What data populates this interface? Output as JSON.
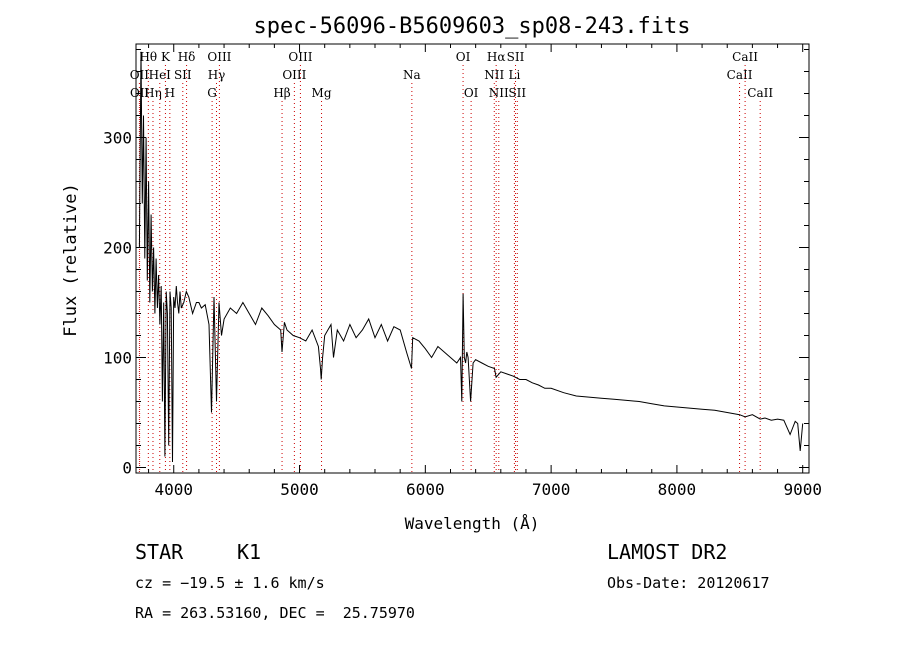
{
  "chart_data": {
    "type": "line",
    "title": "spec-56096-B5609603_sp08-243.fits",
    "xlabel": "Wavelength (Å)",
    "ylabel": "Flux (relative)",
    "xlim": [
      3700,
      9050
    ],
    "ylim": [
      -5,
      385
    ],
    "xticks": [
      4000,
      5000,
      6000,
      7000,
      8000,
      9000
    ],
    "yticks": [
      0,
      100,
      200,
      300
    ],
    "grid": false,
    "line_color": "#000000",
    "marker_line_color": "#cc0000",
    "series": [
      {
        "x": [
          3727,
          3740,
          3750,
          3760,
          3770,
          3780,
          3790,
          3800,
          3810,
          3820,
          3830,
          3840,
          3850,
          3860,
          3870,
          3880,
          3890,
          3900,
          3910,
          3920,
          3930,
          3940,
          3950,
          3960,
          3970,
          3980,
          3990,
          4000,
          4010,
          4020,
          4030,
          4040,
          4050,
          4060,
          4080,
          4100,
          4120,
          4150,
          4180,
          4200,
          4220,
          4250,
          4280,
          4300,
          4320,
          4340,
          4360,
          4380,
          4400,
          4450,
          4500,
          4550,
          4600,
          4650,
          4700,
          4750,
          4800,
          4850,
          4861,
          4880,
          4900,
          4950,
          5000,
          5050,
          5100,
          5150,
          5167,
          5172,
          5183,
          5200,
          5250,
          5270,
          5300,
          5350,
          5400,
          5450,
          5500,
          5550,
          5600,
          5650,
          5700,
          5750,
          5800,
          5850,
          5890,
          5900,
          5950,
          6000,
          6050,
          6100,
          6150,
          6200,
          6250,
          6280,
          6290,
          6300,
          6310,
          6320,
          6330,
          6340,
          6360,
          6380,
          6400,
          6450,
          6500,
          6550,
          6563,
          6600,
          6650,
          6700,
          6750,
          6800,
          6850,
          6900,
          6950,
          7000,
          7100,
          7200,
          7300,
          7400,
          7500,
          7600,
          7700,
          7800,
          7900,
          8000,
          8100,
          8200,
          8300,
          8400,
          8498,
          8542,
          8600,
          8662,
          8700,
          8750,
          8800,
          8850,
          8900,
          8940,
          8960,
          8980,
          9000
        ],
        "y": [
          200,
          378,
          240,
          320,
          190,
          300,
          170,
          260,
          150,
          230,
          160,
          200,
          140,
          190,
          145,
          175,
          130,
          165,
          60,
          150,
          10,
          160,
          140,
          20,
          160,
          145,
          5,
          155,
          145,
          165,
          150,
          140,
          160,
          145,
          150,
          160,
          155,
          140,
          150,
          150,
          145,
          148,
          130,
          50,
          155,
          60,
          150,
          120,
          135,
          145,
          140,
          150,
          140,
          130,
          145,
          138,
          130,
          125,
          105,
          132,
          125,
          120,
          118,
          115,
          125,
          110,
          90,
          80,
          100,
          120,
          130,
          100,
          125,
          115,
          130,
          118,
          125,
          135,
          118,
          130,
          115,
          128,
          125,
          105,
          90,
          118,
          115,
          108,
          100,
          110,
          105,
          100,
          95,
          100,
          60,
          158,
          100,
          95,
          105,
          100,
          60,
          95,
          98,
          95,
          92,
          90,
          82,
          87,
          85,
          83,
          80,
          80,
          77,
          75,
          72,
          72,
          68,
          65,
          64,
          63,
          62,
          61,
          60,
          58,
          56,
          55,
          54,
          53,
          52,
          50,
          48,
          46,
          48,
          44,
          45,
          43,
          44,
          43,
          30,
          42,
          40,
          15,
          40
        ]
      }
    ],
    "line_markers": [
      {
        "label": "OII",
        "x": 3727,
        "row": 2
      },
      {
        "label": "OII",
        "x": 3729,
        "row": 3
      },
      {
        "label": "Hθ",
        "x": 3798,
        "row": 1
      },
      {
        "label": "Hη",
        "x": 3835,
        "row": 3
      },
      {
        "label": "HeI",
        "x": 3889,
        "row": 2
      },
      {
        "label": "K",
        "x": 3934,
        "row": 1
      },
      {
        "label": "H",
        "x": 3969,
        "row": 3
      },
      {
        "label": "SII",
        "x": 4072,
        "row": 2
      },
      {
        "label": "Hδ",
        "x": 4102,
        "row": 1
      },
      {
        "label": "OIII",
        "x": 4363,
        "row": 1
      },
      {
        "label": "Hγ",
        "x": 4340,
        "row": 2
      },
      {
        "label": "G",
        "x": 4305,
        "row": 3
      },
      {
        "label": "Hβ",
        "x": 4861,
        "row": 3
      },
      {
        "label": "OIII",
        "x": 4959,
        "row": 2
      },
      {
        "label": "OIII",
        "x": 5007,
        "row": 1
      },
      {
        "label": "Mg",
        "x": 5175,
        "row": 3
      },
      {
        "label": "Na",
        "x": 5893,
        "row": 2
      },
      {
        "label": "OI",
        "x": 6300,
        "row": 1
      },
      {
        "label": "OI",
        "x": 6364,
        "row": 3
      },
      {
        "label": "NII",
        "x": 6548,
        "row": 2
      },
      {
        "label": "Hα",
        "x": 6563,
        "row": 1
      },
      {
        "label": "NII",
        "x": 6584,
        "row": 3
      },
      {
        "label": "SII",
        "x": 6717,
        "row": 1
      },
      {
        "label": "Li",
        "x": 6708,
        "row": 2
      },
      {
        "label": "SII",
        "x": 6731,
        "row": 3
      },
      {
        "label": "CaII",
        "x": 8498,
        "row": 2
      },
      {
        "label": "CaII",
        "x": 8542,
        "row": 1
      },
      {
        "label": "CaII",
        "x": 8662,
        "row": 3
      }
    ]
  },
  "info": {
    "object_type": "STAR",
    "subclass": "K1",
    "survey": "LAMOST DR2",
    "cz": "cz = −19.5 ± 1.6 km/s",
    "obs_date": "Obs-Date: 20120617",
    "coords": "RA = 263.53160, DEC =  25.75970"
  }
}
